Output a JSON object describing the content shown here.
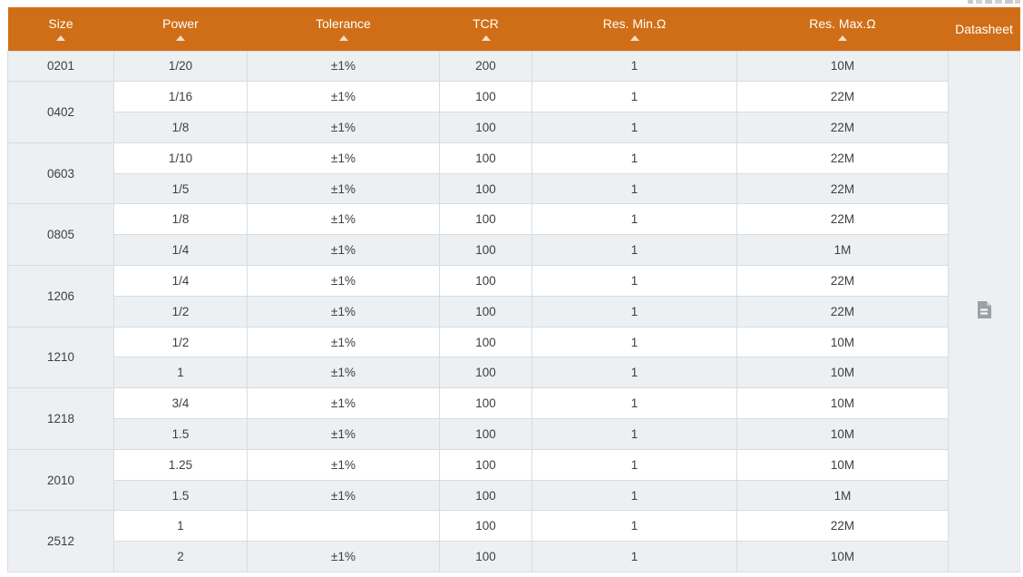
{
  "colors": {
    "header_bg": "#cf6e16",
    "header_text": "#ffffff",
    "stripe_bg": "#edf0f3",
    "datasheet_bg": "#e9edf0",
    "border": "#d9dcdf",
    "body_text": "#3d4043",
    "icon_gray": "#9aa1a8"
  },
  "table": {
    "header": {
      "columns": [
        {
          "label": "Size",
          "sortable": true
        },
        {
          "label": "Power",
          "sortable": true
        },
        {
          "label": "Tolerance",
          "sortable": true
        },
        {
          "label": "TCR",
          "sortable": true
        },
        {
          "label": "Res. Min.Ω",
          "sortable": true
        },
        {
          "label": "Res. Max.Ω",
          "sortable": true
        },
        {
          "label": "Datasheet",
          "sortable": false
        }
      ]
    },
    "groups": [
      {
        "size": "0201",
        "rows": [
          {
            "power": "1/20",
            "tolerance": "±1%",
            "tcr": "200",
            "res_min": "1",
            "res_max": "10M"
          }
        ]
      },
      {
        "size": "0402",
        "rows": [
          {
            "power": "1/16",
            "tolerance": "±1%",
            "tcr": "100",
            "res_min": "1",
            "res_max": "22M"
          },
          {
            "power": "1/8",
            "tolerance": "±1%",
            "tcr": "100",
            "res_min": "1",
            "res_max": "22M"
          }
        ]
      },
      {
        "size": "0603",
        "rows": [
          {
            "power": "1/10",
            "tolerance": "±1%",
            "tcr": "100",
            "res_min": "1",
            "res_max": "22M"
          },
          {
            "power": "1/5",
            "tolerance": "±1%",
            "tcr": "100",
            "res_min": "1",
            "res_max": "22M"
          }
        ]
      },
      {
        "size": "0805",
        "rows": [
          {
            "power": "1/8",
            "tolerance": "±1%",
            "tcr": "100",
            "res_min": "1",
            "res_max": "22M"
          },
          {
            "power": "1/4",
            "tolerance": "±1%",
            "tcr": "100",
            "res_min": "1",
            "res_max": "1M"
          }
        ]
      },
      {
        "size": "1206",
        "rows": [
          {
            "power": "1/4",
            "tolerance": "±1%",
            "tcr": "100",
            "res_min": "1",
            "res_max": "22M"
          },
          {
            "power": "1/2",
            "tolerance": "±1%",
            "tcr": "100",
            "res_min": "1",
            "res_max": "22M"
          }
        ]
      },
      {
        "size": "1210",
        "rows": [
          {
            "power": "1/2",
            "tolerance": "±1%",
            "tcr": "100",
            "res_min": "1",
            "res_max": "10M"
          },
          {
            "power": "1",
            "tolerance": "±1%",
            "tcr": "100",
            "res_min": "1",
            "res_max": "10M"
          }
        ]
      },
      {
        "size": "1218",
        "rows": [
          {
            "power": "3/4",
            "tolerance": "±1%",
            "tcr": "100",
            "res_min": "1",
            "res_max": "10M"
          },
          {
            "power": "1.5",
            "tolerance": "±1%",
            "tcr": "100",
            "res_min": "1",
            "res_max": "10M"
          }
        ]
      },
      {
        "size": "2010",
        "rows": [
          {
            "power": "1.25",
            "tolerance": "±1%",
            "tcr": "100",
            "res_min": "1",
            "res_max": "10M"
          },
          {
            "power": "1.5",
            "tolerance": "±1%",
            "tcr": "100",
            "res_min": "1",
            "res_max": "1M"
          }
        ]
      },
      {
        "size": "2512",
        "rows": [
          {
            "power": "1",
            "tolerance": "",
            "tcr": "100",
            "res_min": "1",
            "res_max": "22M"
          },
          {
            "power": "2",
            "tolerance": "±1%",
            "tcr": "100",
            "res_min": "1",
            "res_max": "10M"
          }
        ]
      }
    ],
    "datasheet": {
      "icon": "file-text-icon"
    }
  }
}
